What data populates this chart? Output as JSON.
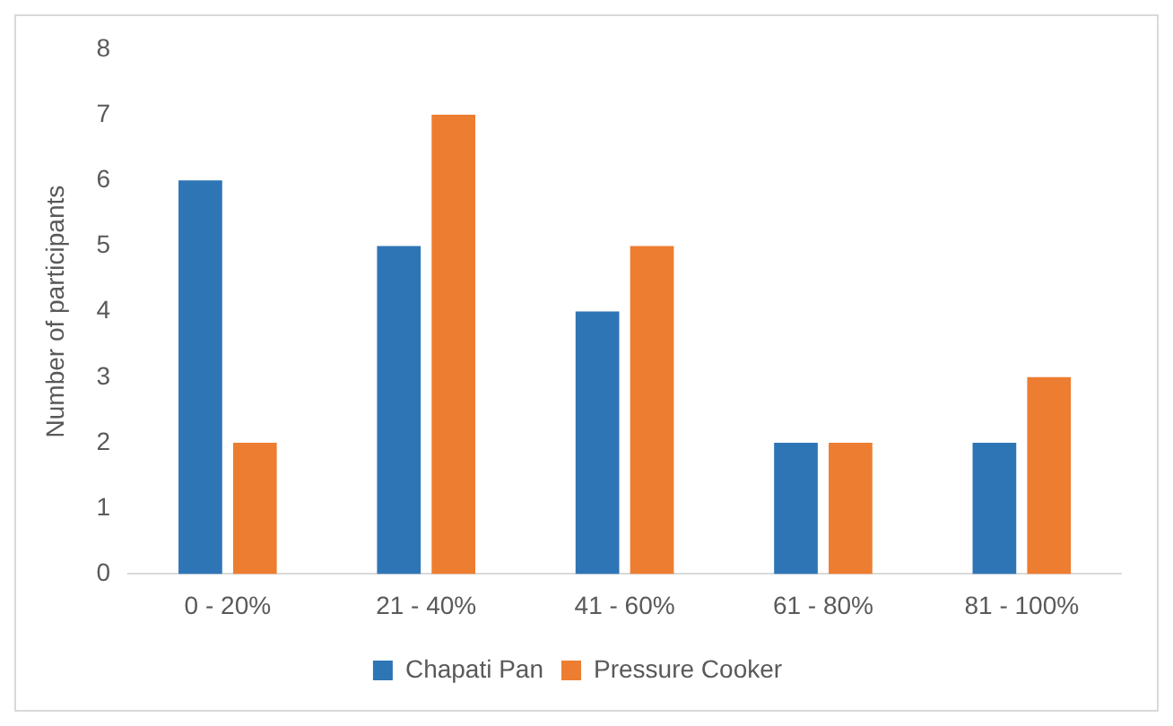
{
  "chart_data": {
    "type": "bar",
    "ylabel": "Number of participants",
    "categories": [
      "0 - 20%",
      "21 - 40%",
      "41 - 60%",
      "61 - 80%",
      "81 - 100%"
    ],
    "series": [
      {
        "name": "Chapati Pan",
        "color": "#2e75b6",
        "values": [
          6,
          5,
          4,
          2,
          2
        ]
      },
      {
        "name": "Pressure Cooker",
        "color": "#ed7d31",
        "values": [
          2,
          7,
          5,
          2,
          3
        ]
      }
    ],
    "ylim": [
      0,
      8
    ],
    "yticks": [
      0,
      1,
      2,
      3,
      4,
      5,
      6,
      7,
      8
    ],
    "grid": false,
    "legend": "bottom"
  }
}
